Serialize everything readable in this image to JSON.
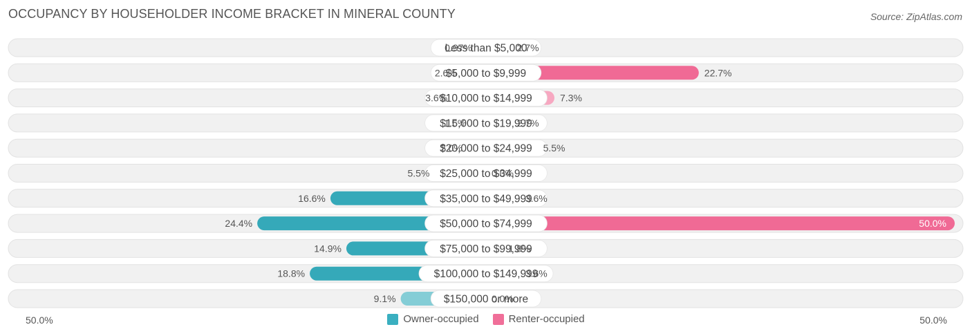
{
  "title": "OCCUPANCY BY HOUSEHOLDER INCOME BRACKET IN MINERAL COUNTY",
  "source": "Source: ZipAtlas.com",
  "axis": {
    "left_label": "50.0%",
    "right_label": "50.0%"
  },
  "legend": {
    "owner": {
      "label": "Owner-occupied",
      "color": "#3aafc0"
    },
    "renter": {
      "label": "Renter-occupied",
      "color": "#f06f99"
    }
  },
  "chart_data": {
    "type": "bar",
    "orientation": "diverging-horizontal",
    "title": "OCCUPANCY BY HOUSEHOLDER INCOME BRACKET IN MINERAL COUNTY",
    "categories": [
      "Less than $5,000",
      "$5,000 to $9,999",
      "$10,000 to $14,999",
      "$15,000 to $19,999",
      "$20,000 to $24,999",
      "$25,000 to $34,999",
      "$35,000 to $49,999",
      "$50,000 to $74,999",
      "$75,000 to $99,999",
      "$100,000 to $149,999",
      "$150,000 or more"
    ],
    "series": [
      {
        "name": "Owner-occupied",
        "values": [
          0.97,
          2.6,
          3.6,
          1.6,
          2.0,
          5.5,
          16.6,
          24.4,
          14.9,
          18.8,
          9.1
        ],
        "labels": [
          "0.97%",
          "2.6%",
          "3.6%",
          "1.6%",
          "2.0%",
          "5.5%",
          "16.6%",
          "24.4%",
          "14.9%",
          "18.8%",
          "9.1%"
        ]
      },
      {
        "name": "Renter-occupied",
        "values": [
          2.7,
          22.7,
          7.3,
          2.7,
          5.5,
          0.0,
          3.6,
          50.0,
          1.8,
          3.6,
          0.0
        ],
        "labels": [
          "2.7%",
          "22.7%",
          "7.3%",
          "2.7%",
          "5.5%",
          "0.0%",
          "3.6%",
          "50.0%",
          "1.8%",
          "3.6%",
          "0.0%"
        ]
      }
    ],
    "xlim": [
      -50,
      50
    ],
    "xlabel_left": "50.0%",
    "xlabel_right": "50.0%"
  }
}
